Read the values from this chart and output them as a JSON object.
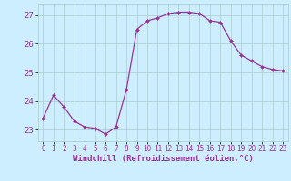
{
  "x": [
    0,
    1,
    2,
    3,
    4,
    5,
    6,
    7,
    8,
    9,
    10,
    11,
    12,
    13,
    14,
    15,
    16,
    17,
    18,
    19,
    20,
    21,
    22,
    23
  ],
  "y": [
    23.4,
    24.2,
    23.8,
    23.3,
    23.1,
    23.05,
    22.85,
    23.1,
    24.4,
    26.5,
    26.8,
    26.9,
    27.05,
    27.1,
    27.1,
    27.05,
    26.8,
    26.75,
    26.1,
    25.6,
    25.4,
    25.2,
    25.1,
    25.05
  ],
  "line_color": "#993399",
  "marker": "D",
  "marker_size": 2,
  "line_width": 0.9,
  "bg_color": "#cceeff",
  "grid_color": "#aacccc",
  "xlabel": "Windchill (Refroidissement éolien,°C)",
  "xlabel_color": "#993399",
  "xlabel_fontsize": 6.5,
  "yticks": [
    23,
    24,
    25,
    26,
    27
  ],
  "xticks": [
    0,
    1,
    2,
    3,
    4,
    5,
    6,
    7,
    8,
    9,
    10,
    11,
    12,
    13,
    14,
    15,
    16,
    17,
    18,
    19,
    20,
    21,
    22,
    23
  ],
  "tick_label_color": "#993399",
  "tick_fontsize": 5.5,
  "ytick_fontsize": 6.5,
  "ylim": [
    22.6,
    27.4
  ],
  "xlim": [
    -0.5,
    23.5
  ]
}
